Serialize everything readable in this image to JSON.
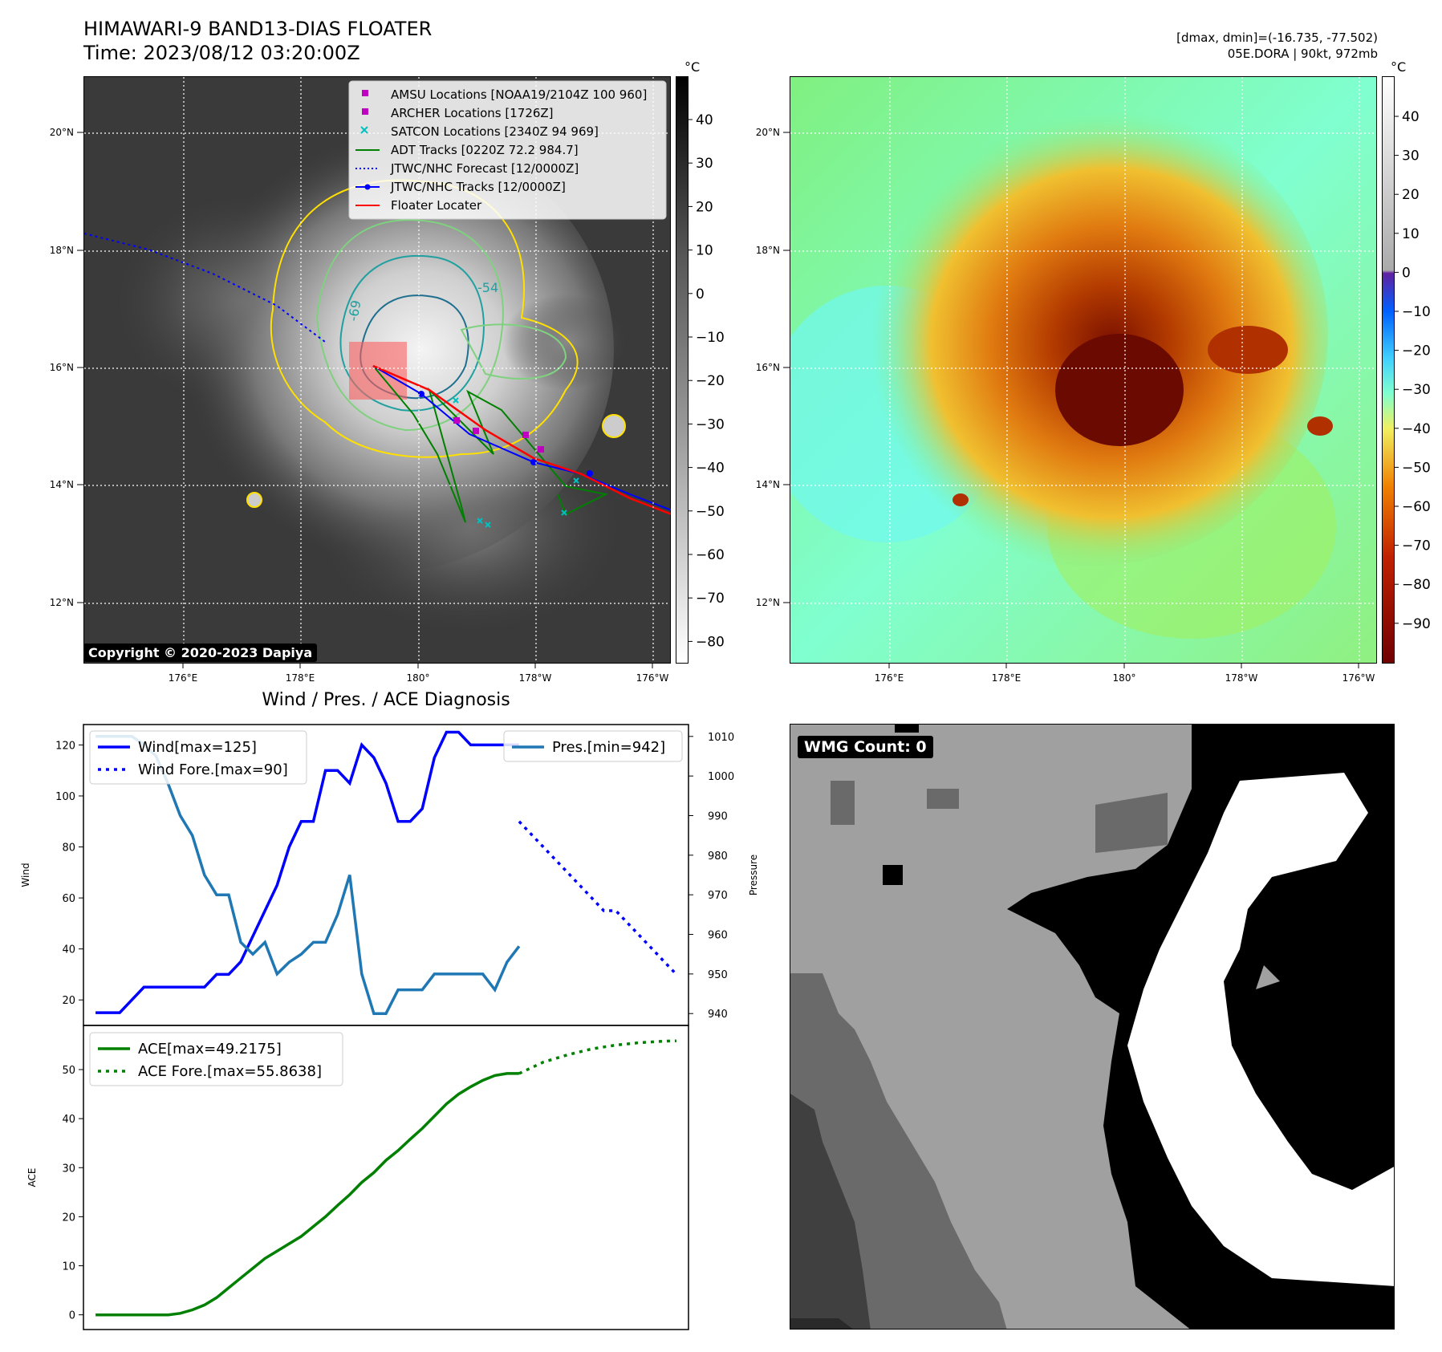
{
  "header": {
    "title_line1": "HIMAWARI-9 BAND13-DIAS FLOATER",
    "title_line2": "Time: 2023/08/12 03:20:00Z",
    "right_line1": "[dmax, dmin]=(-16.735, -77.502)",
    "right_line2": "05E.DORA | 90kt, 972mb"
  },
  "copyright": "Copyright © 2020-2023 Dapiya",
  "map": {
    "lon_ticks": [
      "176°E",
      "178°E",
      "180°",
      "178°W",
      "176°W"
    ],
    "lat_ticks": [
      "20°N",
      "18°N",
      "16°N",
      "14°N",
      "12°N"
    ],
    "legend": [
      {
        "label": "AMSU Locations [NOAA19/2104Z 100 960]",
        "color": "#c000c0",
        "kind": "square"
      },
      {
        "label": "ARCHER Locations [1726Z]",
        "color": "#c000c0",
        "kind": "square"
      },
      {
        "label": "SATCON Locations [2340Z 94 969]",
        "color": "#00c0c0",
        "kind": "x"
      },
      {
        "label": "ADT Tracks [0220Z 72.2 984.7]",
        "color": "#008000",
        "kind": "line"
      },
      {
        "label": "JTWC/NHC Forecast [12/0000Z]",
        "color": "#0000ff",
        "kind": "dotted"
      },
      {
        "label": "JTWC/NHC Tracks [12/0000Z]",
        "color": "#0000ff",
        "kind": "linedot"
      },
      {
        "label": "Floater Locater",
        "color": "#ff0000",
        "kind": "line"
      }
    ],
    "contour_label_1": "-54",
    "contour_label_2": "-69"
  },
  "colorbar_gray": {
    "unit": "°C",
    "ticks": [
      "40",
      "30",
      "20",
      "10",
      "0",
      "−10",
      "−20",
      "−30",
      "−40",
      "−50",
      "−60",
      "−70",
      "−80"
    ]
  },
  "colorbar_color": {
    "unit": "°C",
    "ticks": [
      "40",
      "30",
      "20",
      "10",
      "0",
      "−10",
      "−20",
      "−30",
      "−40",
      "−50",
      "−60",
      "−70",
      "−80",
      "−90"
    ]
  },
  "wmg_count": "WMG Count: 0",
  "chart_data": [
    {
      "type": "line",
      "title": "Wind / Pres. / ACE Diagnosis",
      "ylabel": "Wind",
      "ylabel_right": "Pressure",
      "ylim": [
        10,
        128
      ],
      "ylim_right": [
        937,
        1013
      ],
      "yticks": [
        20,
        40,
        60,
        80,
        100,
        120
      ],
      "yticks_right": [
        940,
        950,
        960,
        970,
        980,
        990,
        1000,
        1010
      ],
      "xlim": [
        -2,
        98
      ],
      "series": [
        {
          "name": "Wind[max=125]",
          "color": "#0000ff",
          "style": "solid",
          "x": [
            0,
            4,
            6,
            8,
            10,
            12,
            14,
            16,
            18,
            20,
            22,
            24,
            26,
            28,
            30,
            32,
            34,
            36,
            38,
            40,
            42,
            44,
            46,
            48,
            50,
            52,
            54,
            56,
            58,
            60,
            62,
            64,
            66,
            68,
            70
          ],
          "y": [
            15,
            15,
            20,
            25,
            25,
            25,
            25,
            25,
            25,
            30,
            30,
            35,
            45,
            55,
            65,
            80,
            90,
            90,
            110,
            110,
            105,
            120,
            115,
            105,
            90,
            90,
            95,
            115,
            125,
            125,
            120,
            120,
            120,
            120,
            120
          ]
        },
        {
          "name": "Wind Fore.[max=90]",
          "color": "#0000ff",
          "style": "dotted",
          "x": [
            70,
            72,
            74,
            76,
            78,
            80,
            82,
            84,
            86,
            88,
            90,
            92,
            94,
            96
          ],
          "y": [
            90,
            85,
            80,
            75,
            70,
            65,
            60,
            55,
            55,
            50,
            45,
            40,
            35,
            30
          ]
        },
        {
          "name": "Pres.[min=942]",
          "color": "#1f77b4",
          "style": "solid",
          "axis": "right",
          "x": [
            0,
            4,
            6,
            8,
            10,
            12,
            14,
            16,
            18,
            20,
            22,
            24,
            26,
            28,
            30,
            32,
            34,
            36,
            38,
            40,
            42,
            44,
            46,
            48,
            50,
            52,
            54,
            56,
            58,
            60,
            62,
            64,
            66,
            68,
            70
          ],
          "y": [
            1010,
            1010,
            1010,
            1008,
            1005,
            998,
            990,
            985,
            975,
            970,
            970,
            958,
            955,
            958,
            950,
            953,
            955,
            958,
            958,
            965,
            975,
            950,
            940,
            940,
            946,
            946,
            946,
            950,
            950,
            950,
            950,
            950,
            946,
            953,
            957
          ]
        }
      ]
    },
    {
      "type": "line",
      "ylabel": "ACE",
      "ylim": [
        -3,
        59
      ],
      "yticks": [
        0,
        10,
        20,
        30,
        40,
        50
      ],
      "xlim": [
        -2,
        98
      ],
      "series": [
        {
          "name": "ACE[max=49.2175]",
          "color": "#008000",
          "style": "solid",
          "x": [
            0,
            4,
            8,
            12,
            14,
            16,
            18,
            20,
            22,
            24,
            26,
            28,
            30,
            32,
            34,
            36,
            38,
            40,
            42,
            44,
            46,
            48,
            50,
            52,
            54,
            56,
            58,
            60,
            62,
            64,
            66,
            68,
            70
          ],
          "y": [
            0,
            0,
            0,
            0,
            0.3,
            1,
            2,
            3.5,
            5.5,
            7.5,
            9.5,
            11.5,
            13,
            14.5,
            16,
            18,
            20,
            22.3,
            24.5,
            27,
            29,
            31.5,
            33.5,
            35.8,
            38,
            40.5,
            43,
            45,
            46.5,
            47.8,
            48.8,
            49.2,
            49.2
          ]
        },
        {
          "name": "ACE Fore.[max=55.8638]",
          "color": "#008000",
          "style": "dotted",
          "x": [
            70,
            74,
            78,
            82,
            86,
            90,
            94,
            96
          ],
          "y": [
            49.2,
            51.5,
            53,
            54.2,
            55,
            55.5,
            55.8,
            55.86
          ]
        }
      ]
    }
  ]
}
